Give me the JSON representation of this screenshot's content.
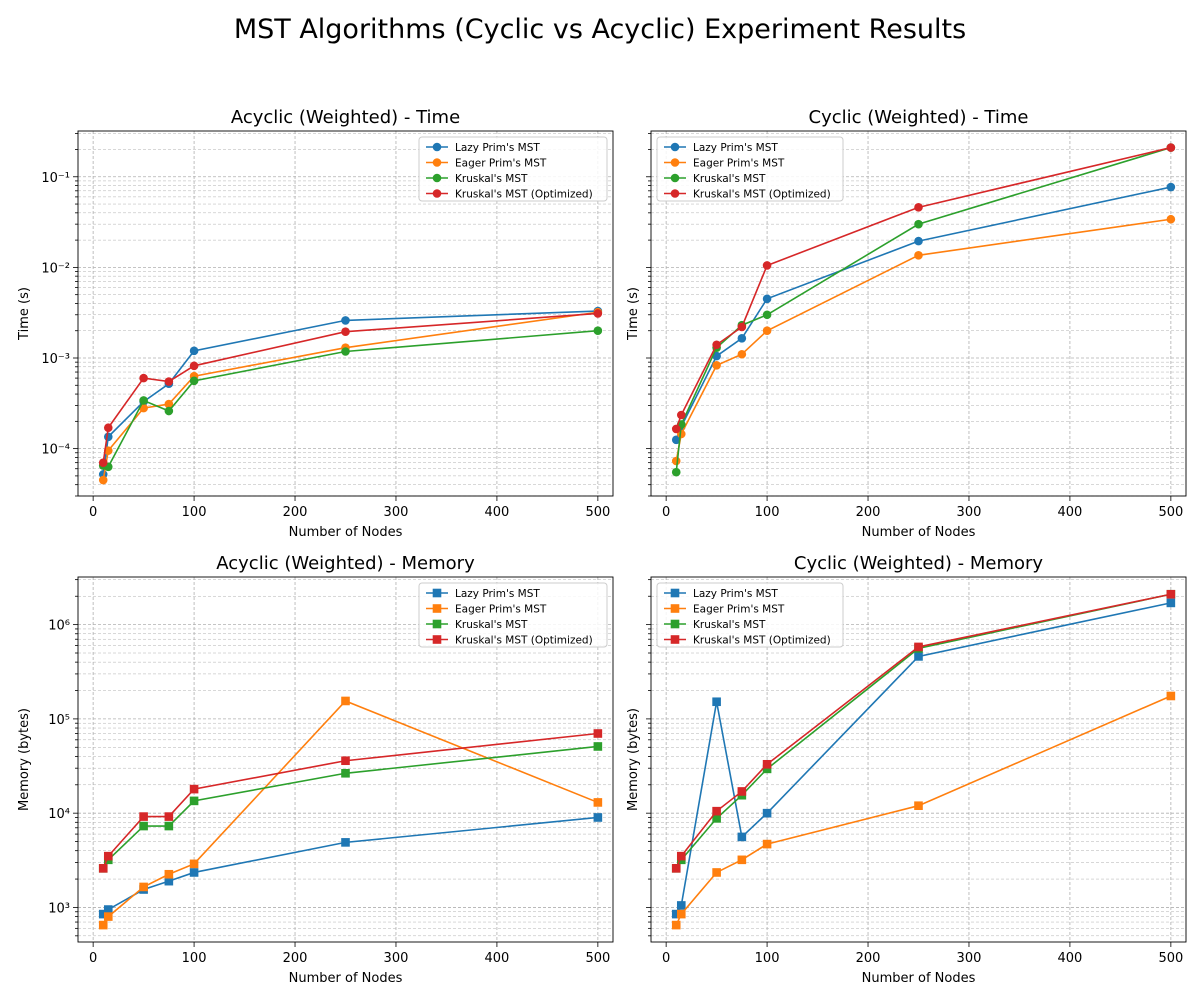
{
  "figure_title": "MST Algorithms (Cyclic vs Acyclic) Experiment Results",
  "colors": {
    "Lazy Prim's MST": "#1f77b4",
    "Eager Prim's MST": "#ff7f0e",
    "Kruskal's MST": "#2ca02c",
    "Kruskal's MST (Optimized)": "#d62728"
  },
  "chart_data": [
    {
      "type": "line",
      "title": "Acyclic (Weighted) - Time",
      "xlabel": "Number of Nodes",
      "ylabel": "Time (s)",
      "yscale": "log",
      "xlim": [
        -15,
        515
      ],
      "ylim": [
        3e-05,
        0.32
      ],
      "xticks": [
        0,
        100,
        200,
        300,
        400,
        500
      ],
      "yticks": [
        {
          "value": 0.0001,
          "label": "10⁻⁴"
        },
        {
          "value": 0.001,
          "label": "10⁻³"
        },
        {
          "value": 0.01,
          "label": "10⁻²"
        },
        {
          "value": 0.1,
          "label": "10⁻¹"
        }
      ],
      "marker": "circle",
      "grid": true,
      "legend_position": "top-right",
      "x": [
        10,
        15,
        50,
        75,
        100,
        250,
        500
      ],
      "series": [
        {
          "name": "Lazy Prim's MST",
          "values": [
            5.2e-05,
            0.000135,
            0.00033,
            0.00052,
            0.0012,
            0.0026,
            0.0033
          ]
        },
        {
          "name": "Eager Prim's MST",
          "values": [
            4.5e-05,
            9.5e-05,
            0.00028,
            0.00031,
            0.00063,
            0.0013,
            0.0032
          ]
        },
        {
          "name": "Kruskal's MST",
          "values": [
            6.5e-05,
            6.3e-05,
            0.00034,
            0.00026,
            0.00056,
            0.00118,
            0.002
          ]
        },
        {
          "name": "Kruskal's MST (Optimized)",
          "values": [
            7e-05,
            0.00017,
            0.0006,
            0.00055,
            0.00082,
            0.00195,
            0.0031
          ]
        }
      ]
    },
    {
      "type": "line",
      "title": "Cyclic (Weighted) - Time",
      "xlabel": "Number of Nodes",
      "ylabel": "Time (s)",
      "yscale": "log",
      "xlim": [
        -15,
        515
      ],
      "ylim": [
        3e-05,
        0.32
      ],
      "xticks": [
        0,
        100,
        200,
        300,
        400,
        500
      ],
      "yticks": [
        {
          "value": 0.0001,
          "label": "10⁻⁴"
        },
        {
          "value": 0.001,
          "label": "10⁻³"
        },
        {
          "value": 0.01,
          "label": "10⁻²"
        },
        {
          "value": 0.1,
          "label": "10⁻¹"
        }
      ],
      "marker": "circle",
      "grid": true,
      "legend_position": "top-left",
      "x": [
        10,
        15,
        50,
        75,
        100,
        250,
        500
      ],
      "series": [
        {
          "name": "Lazy Prim's MST",
          "values": [
            0.000125,
            0.000175,
            0.00105,
            0.00165,
            0.0045,
            0.0195,
            0.077
          ]
        },
        {
          "name": "Eager Prim's MST",
          "values": [
            7.3e-05,
            0.000145,
            0.00083,
            0.0011,
            0.002,
            0.0136,
            0.034
          ]
        },
        {
          "name": "Kruskal's MST",
          "values": [
            5.5e-05,
            0.000185,
            0.0013,
            0.0023,
            0.003,
            0.03,
            0.21
          ]
        },
        {
          "name": "Kruskal's MST (Optimized)",
          "values": [
            0.000165,
            0.000235,
            0.0014,
            0.0022,
            0.0105,
            0.046,
            0.21
          ]
        }
      ]
    },
    {
      "type": "line",
      "title": "Acyclic (Weighted) - Memory",
      "xlabel": "Number of Nodes",
      "ylabel": "Memory (bytes)",
      "yscale": "log",
      "xlim": [
        -15,
        515
      ],
      "ylim": [
        430,
        3200000
      ],
      "xticks": [
        0,
        100,
        200,
        300,
        400,
        500
      ],
      "yticks": [
        {
          "value": 1000,
          "label": "10³"
        },
        {
          "value": 10000,
          "label": "10⁴"
        },
        {
          "value": 100000,
          "label": "10⁵"
        },
        {
          "value": 1000000,
          "label": "10⁶"
        }
      ],
      "marker": "square",
      "grid": true,
      "legend_position": "top-right",
      "x": [
        10,
        15,
        50,
        75,
        100,
        250,
        500
      ],
      "series": [
        {
          "name": "Lazy Prim's MST",
          "values": [
            850,
            950,
            1550,
            1900,
            2350,
            4900,
            9000
          ]
        },
        {
          "name": "Eager Prim's MST",
          "values": [
            650,
            800,
            1650,
            2250,
            2900,
            155000,
            13000
          ]
        },
        {
          "name": "Kruskal's MST",
          "values": [
            2600,
            3200,
            7300,
            7300,
            13500,
            26500,
            51000
          ]
        },
        {
          "name": "Kruskal's MST (Optimized)",
          "values": [
            2600,
            3500,
            9200,
            9200,
            18000,
            36000,
            70000
          ]
        }
      ]
    },
    {
      "type": "line",
      "title": "Cyclic (Weighted) - Memory",
      "xlabel": "Number of Nodes",
      "ylabel": "Memory (bytes)",
      "yscale": "log",
      "xlim": [
        -15,
        515
      ],
      "ylim": [
        430,
        3200000
      ],
      "xticks": [
        0,
        100,
        200,
        300,
        400,
        500
      ],
      "yticks": [
        {
          "value": 1000,
          "label": "10³"
        },
        {
          "value": 10000,
          "label": "10⁴"
        },
        {
          "value": 100000,
          "label": "10⁵"
        },
        {
          "value": 1000000,
          "label": "10⁶"
        }
      ],
      "marker": "square",
      "grid": true,
      "legend_position": "top-left",
      "x": [
        10,
        15,
        50,
        75,
        100,
        250,
        500
      ],
      "series": [
        {
          "name": "Lazy Prim's MST",
          "values": [
            850,
            1050,
            152000,
            5600,
            10000,
            460000,
            1700000
          ]
        },
        {
          "name": "Eager Prim's MST",
          "values": [
            650,
            850,
            2350,
            3200,
            4700,
            12000,
            175000
          ]
        },
        {
          "name": "Kruskal's MST",
          "values": [
            2600,
            3200,
            8800,
            15500,
            29500,
            560000,
            2100000
          ]
        },
        {
          "name": "Kruskal's MST (Optimized)",
          "values": [
            2600,
            3500,
            10500,
            17000,
            33000,
            580000,
            2100000
          ]
        }
      ]
    }
  ]
}
